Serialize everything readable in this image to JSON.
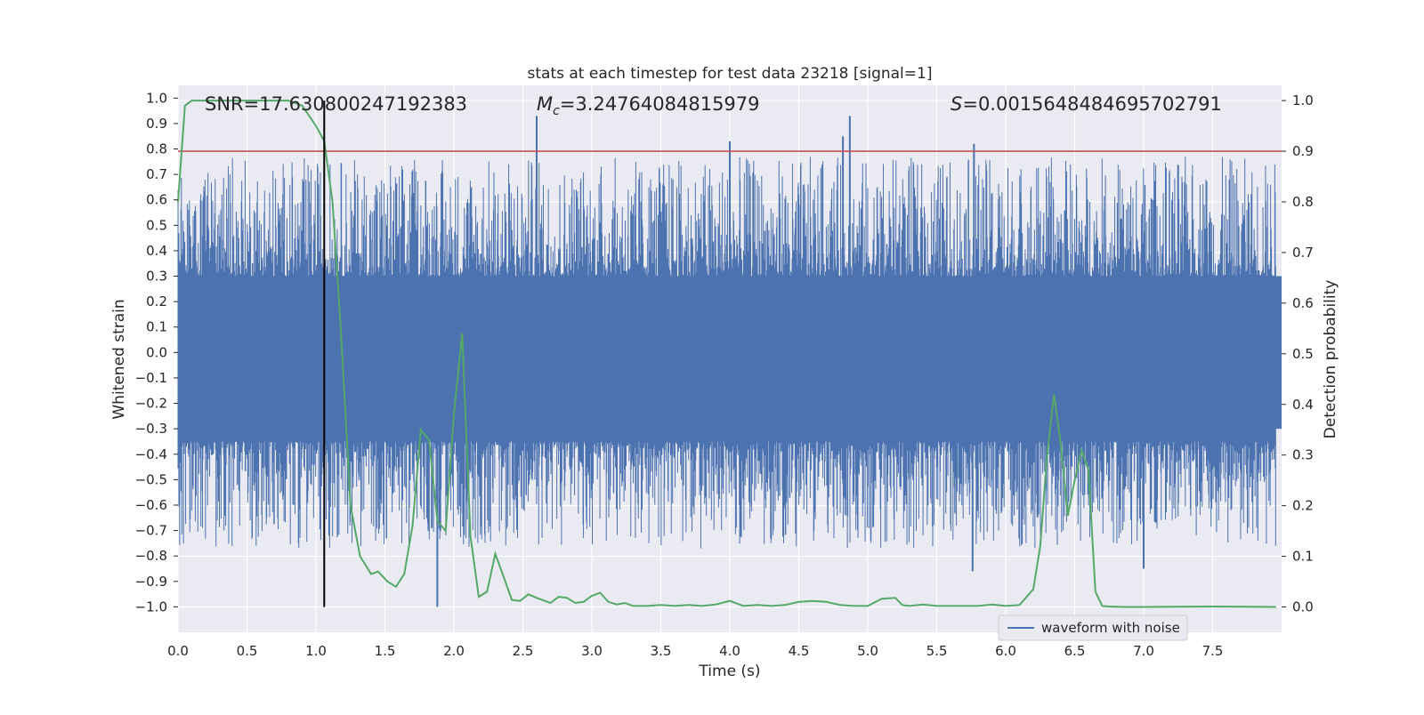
{
  "chart_data": {
    "type": "line",
    "title": "stats at each timestep for test data 23218 [signal=1]",
    "xlabel": "Time (s)",
    "ylabel_left": "Whitened strain",
    "ylabel_right": "Detection probability",
    "xlim": [
      0.0,
      8.0
    ],
    "ylim_left": [
      -1.1,
      1.05
    ],
    "ylim_right": [
      -0.05,
      1.03
    ],
    "x_ticks": [
      "0.0",
      "0.5",
      "1.0",
      "1.5",
      "2.0",
      "2.5",
      "3.0",
      "3.5",
      "4.0",
      "4.5",
      "5.0",
      "5.5",
      "6.0",
      "6.5",
      "7.0",
      "7.5"
    ],
    "y_left_ticks": [
      "1.0",
      "0.9",
      "0.8",
      "0.7",
      "0.6",
      "0.5",
      "0.4",
      "0.3",
      "0.2",
      "0.1",
      "0.0",
      "-0.1",
      "-0.2",
      "-0.3",
      "-0.4",
      "-0.5",
      "-0.6",
      "-0.7",
      "-0.8",
      "-0.9",
      "-1.0"
    ],
    "y_right_ticks": [
      "1.0",
      "0.9",
      "0.8",
      "0.7",
      "0.6",
      "0.5",
      "0.4",
      "0.3",
      "0.2",
      "0.1",
      "0.0"
    ],
    "annotations": {
      "snr": "SNR=17.630800247192383",
      "mc_symbol": "M",
      "mc_subscript": "c",
      "mc_value": "=3.24764084815979",
      "s_symbol": "S",
      "s_value": "=0.0015648484695702791"
    },
    "threshold": {
      "value": 0.9,
      "axis": "right",
      "color": "#c44e52"
    },
    "event_marker": {
      "time": 1.06,
      "ymin": 0.0,
      "ymax": 1.0,
      "axis": "right",
      "color": "#000000"
    },
    "noise_series": {
      "name": "waveform with noise",
      "color": "#4c72b0",
      "core_amplitude": 0.3,
      "peak_amplitude_min": -1.0,
      "peak_amplitude_max": 0.93,
      "notable_peaks": [
        {
          "t": 2.6,
          "v": 0.93
        },
        {
          "t": 4.87,
          "v": 0.93
        },
        {
          "t": 4.82,
          "v": 0.85
        },
        {
          "t": 4.0,
          "v": 0.83
        },
        {
          "t": 5.77,
          "v": 0.82
        },
        {
          "t": 1.88,
          "v": -1.0
        },
        {
          "t": 5.76,
          "v": -0.86
        },
        {
          "t": 7.0,
          "v": -0.85
        }
      ]
    },
    "probability_series": {
      "name": "detection probability",
      "color": "#55a868",
      "x": [
        0.0,
        0.05,
        0.1,
        0.2,
        0.3,
        0.5,
        0.7,
        0.8,
        0.9,
        0.95,
        1.0,
        1.06,
        1.12,
        1.18,
        1.25,
        1.32,
        1.4,
        1.45,
        1.52,
        1.58,
        1.64,
        1.7,
        1.76,
        1.82,
        1.88,
        1.94,
        2.0,
        2.06,
        2.12,
        2.18,
        2.24,
        2.3,
        2.36,
        2.42,
        2.48,
        2.54,
        2.6,
        2.7,
        2.76,
        2.82,
        2.88,
        2.94,
        3.0,
        3.06,
        3.12,
        3.18,
        3.24,
        3.3,
        3.4,
        3.5,
        3.6,
        3.7,
        3.8,
        3.9,
        4.0,
        4.1,
        4.2,
        4.3,
        4.4,
        4.5,
        4.6,
        4.7,
        4.8,
        4.9,
        5.0,
        5.1,
        5.2,
        5.25,
        5.3,
        5.4,
        5.5,
        5.6,
        5.7,
        5.8,
        5.9,
        6.0,
        6.1,
        6.2,
        6.25,
        6.3,
        6.35,
        6.4,
        6.45,
        6.5,
        6.55,
        6.6,
        6.65,
        6.7,
        6.75,
        6.85,
        7.0,
        7.5,
        7.96
      ],
      "y": [
        0.8,
        0.99,
        1.0,
        1.0,
        1.0,
        1.0,
        1.0,
        1.0,
        0.99,
        0.97,
        0.95,
        0.92,
        0.8,
        0.55,
        0.2,
        0.1,
        0.065,
        0.07,
        0.05,
        0.04,
        0.065,
        0.16,
        0.35,
        0.33,
        0.17,
        0.15,
        0.38,
        0.54,
        0.14,
        0.02,
        0.03,
        0.105,
        0.06,
        0.014,
        0.012,
        0.025,
        0.018,
        0.008,
        0.02,
        0.018,
        0.008,
        0.01,
        0.022,
        0.028,
        0.01,
        0.005,
        0.008,
        0.002,
        0.002,
        0.004,
        0.002,
        0.004,
        0.002,
        0.005,
        0.012,
        0.002,
        0.004,
        0.002,
        0.004,
        0.01,
        0.012,
        0.01,
        0.004,
        0.002,
        0.002,
        0.016,
        0.018,
        0.004,
        0.002,
        0.005,
        0.002,
        0.002,
        0.002,
        0.002,
        0.005,
        0.002,
        0.004,
        0.035,
        0.12,
        0.3,
        0.42,
        0.32,
        0.18,
        0.25,
        0.31,
        0.27,
        0.03,
        0.002,
        0.001,
        0.0,
        0.0,
        0.001,
        0.0
      ]
    },
    "legend": {
      "entries": [
        "waveform with noise"
      ],
      "position": "lower-right"
    },
    "grid": true
  }
}
